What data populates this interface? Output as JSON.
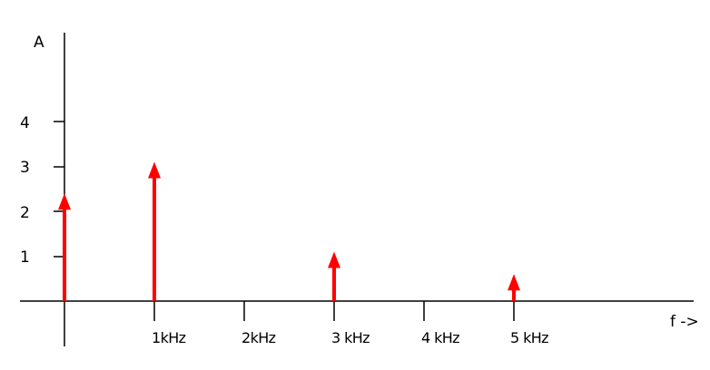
{
  "chart_data": {
    "type": "bar",
    "ylabel": "A",
    "xlabel": "f ->",
    "y_ticks": [
      "1",
      "2",
      "3",
      "4"
    ],
    "x_ticks": [
      "1kHz",
      "2kHz",
      "3 kHz",
      "4 kHz",
      "5 kHz"
    ],
    "x": [
      0,
      1,
      3,
      5
    ],
    "values": [
      2.4,
      3.1,
      1.1,
      0.6
    ],
    "x_unit": "kHz",
    "ylim": [
      0,
      6
    ],
    "arrow_color": "#ff0000",
    "axis_color": "#000000",
    "grid": false
  }
}
